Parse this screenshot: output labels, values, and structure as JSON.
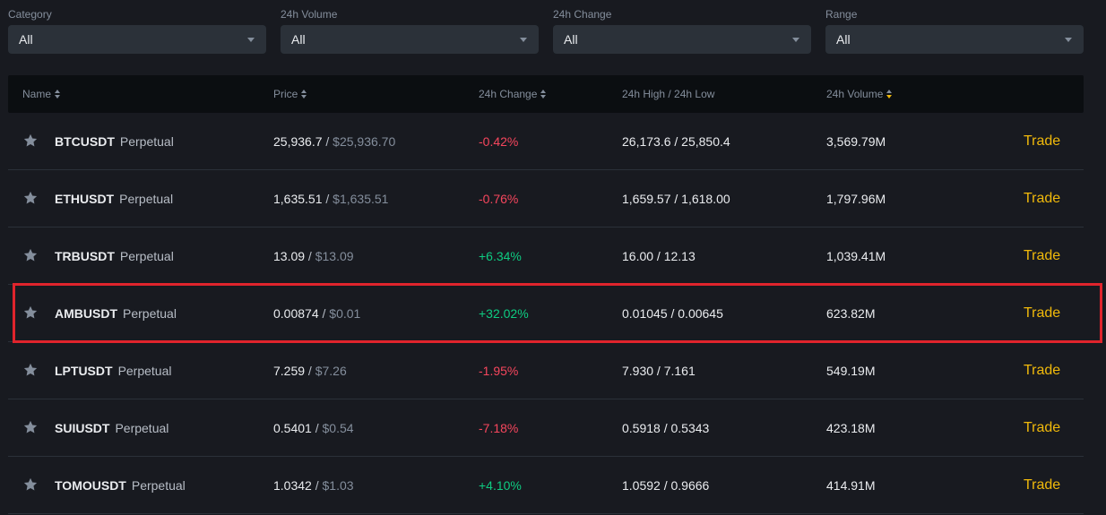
{
  "filters": [
    {
      "label": "Category",
      "value": "All"
    },
    {
      "label": "24h Volume",
      "value": "All"
    },
    {
      "label": "24h Change",
      "value": "All"
    },
    {
      "label": "Range",
      "value": "All"
    }
  ],
  "table": {
    "columns": {
      "name": "Name",
      "price": "Price",
      "change": "24h Change",
      "high_low": "24h High / 24h Low",
      "volume": "24h Volume"
    },
    "rows": [
      {
        "symbol": "BTCUSDT",
        "type": "Perpetual",
        "price": "25,936.7",
        "sep": " / ",
        "price_usd": "$25,936.70",
        "change": "-0.42%",
        "high_low": "26,173.6 / 25,850.4",
        "volume": "3,569.79M",
        "action": "Trade"
      },
      {
        "symbol": "ETHUSDT",
        "type": "Perpetual",
        "price": "1,635.51",
        "sep": " / ",
        "price_usd": "$1,635.51",
        "change": "-0.76%",
        "high_low": "1,659.57 / 1,618.00",
        "volume": "1,797.96M",
        "action": "Trade"
      },
      {
        "symbol": "TRBUSDT",
        "type": "Perpetual",
        "price": "13.09",
        "sep": " / ",
        "price_usd": "$13.09",
        "change": "+6.34%",
        "high_low": "16.00 / 12.13",
        "volume": "1,039.41M",
        "action": "Trade"
      },
      {
        "symbol": "AMBUSDT",
        "type": "Perpetual",
        "price": "0.00874",
        "sep": " / ",
        "price_usd": "$0.01",
        "change": "+32.02%",
        "high_low": "0.01045 / 0.00645",
        "volume": "623.82M",
        "action": "Trade"
      },
      {
        "symbol": "LPTUSDT",
        "type": "Perpetual",
        "price": "7.259",
        "sep": " / ",
        "price_usd": "$7.26",
        "change": "-1.95%",
        "high_low": "7.930 / 7.161",
        "volume": "549.19M",
        "action": "Trade"
      },
      {
        "symbol": "SUIUSDT",
        "type": "Perpetual",
        "price": "0.5401",
        "sep": " / ",
        "price_usd": "$0.54",
        "change": "-7.18%",
        "high_low": "0.5918 / 0.5343",
        "volume": "423.18M",
        "action": "Trade"
      },
      {
        "symbol": "TOMOUSDT",
        "type": "Perpetual",
        "price": "1.0342",
        "sep": " / ",
        "price_usd": "$1.03",
        "change": "+4.10%",
        "high_low": "1.0592 / 0.9666",
        "volume": "414.91M",
        "action": "Trade"
      }
    ]
  },
  "colors": {
    "background": "#181a20",
    "header_bg": "#0b0e11",
    "accent": "#f0b90b",
    "negative": "#f6465d",
    "positive": "#0ecb81",
    "highlight_box": "#e0242c"
  },
  "icons": {
    "favorite": "star-icon",
    "dropdown": "caret-down-icon",
    "sort": "sort-icon"
  }
}
